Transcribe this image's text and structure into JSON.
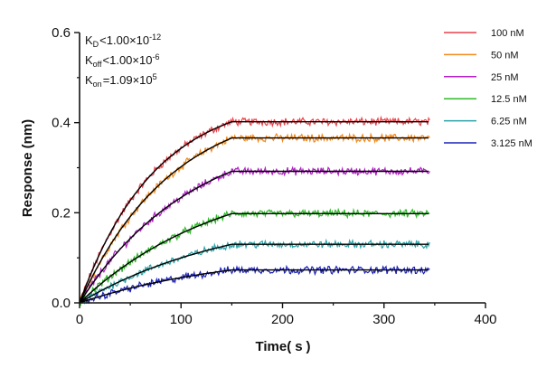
{
  "chart_data": {
    "type": "line",
    "title": "",
    "xlabel": "Time",
    "xunit": "s",
    "ylabel": "Response (nm)",
    "xlim": [
      0,
      400
    ],
    "ylim": [
      0.0,
      0.6
    ],
    "xticks": [
      0,
      100,
      200,
      300,
      400
    ],
    "yticks": [
      "0.0",
      "0.2",
      "0.4",
      "0.6"
    ],
    "grid": false,
    "legend_position": "right",
    "association_end": 150,
    "dissociation_end": 345,
    "annotations": {
      "kd": {
        "base": "K",
        "sub": "D",
        "rel": "<",
        "value": "1.00×10",
        "exp": "-12"
      },
      "koff": {
        "base": "K",
        "sub": "off",
        "rel": "<",
        "value": "1.00×10",
        "exp": "-6"
      },
      "kon": {
        "base": "K",
        "sub": "on",
        "rel": "=",
        "value": "1.09×10",
        "exp": "5"
      }
    },
    "series": [
      {
        "name": "100 nM",
        "color": "#e8424a",
        "plateau": 0.402,
        "k": 0.0135
      },
      {
        "name": "50 nM",
        "color": "#f28a1c",
        "plateau": 0.366,
        "k": 0.011
      },
      {
        "name": "25 nM",
        "color": "#b31fc7",
        "plateau": 0.292,
        "k": 0.009
      },
      {
        "name": "12.5 nM",
        "color": "#2dbb28",
        "plateau": 0.198,
        "k": 0.0072
      },
      {
        "name": "6.25 nM",
        "color": "#2aa3a8",
        "plateau": 0.13,
        "k": 0.0065
      },
      {
        "name": "3.125 nM",
        "color": "#1c22b8",
        "plateau": 0.073,
        "k": 0.0065
      }
    ],
    "fit_color": "#000000"
  }
}
